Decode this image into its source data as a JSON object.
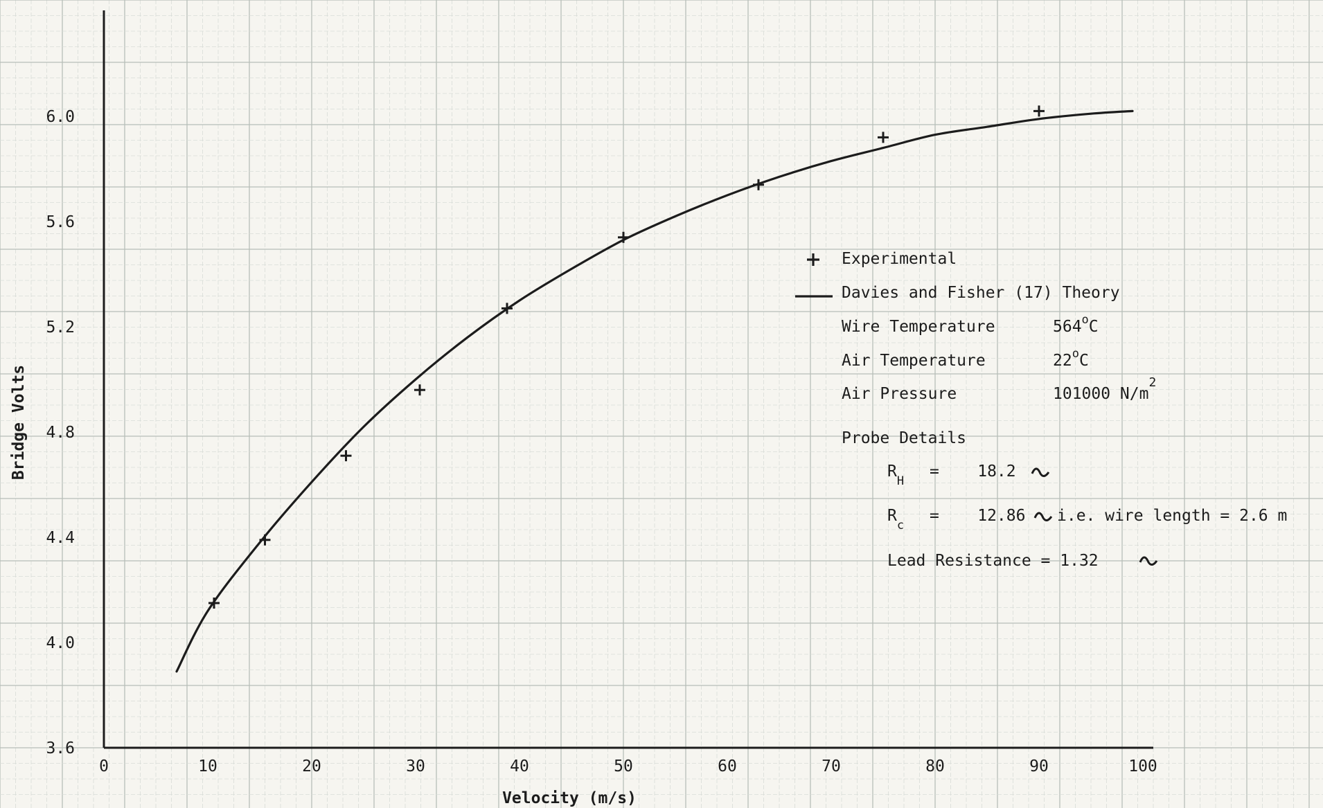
{
  "chart_data": {
    "type": "scatter",
    "xlabel": "Velocity (m/s)",
    "ylabel": "Bridge Volts",
    "xlim": [
      0,
      100
    ],
    "ylim": [
      3.6,
      6.3
    ],
    "x_ticks": [
      "0",
      "10",
      "20",
      "30",
      "40",
      "50",
      "60",
      "70",
      "80",
      "90",
      "100"
    ],
    "y_ticks": [
      "3.6",
      "4.0",
      "4.4",
      "4.8",
      "5.2",
      "5.6",
      "6.0"
    ],
    "grid": true,
    "legend_position": "right",
    "series": [
      {
        "name": "Experimental",
        "kind": "markers",
        "marker": "plus",
        "x": [
          10.6,
          15.5,
          23.3,
          30.4,
          38.8,
          50.0,
          63.0,
          75.0,
          90.0
        ],
        "y": [
          4.15,
          4.39,
          4.71,
          4.96,
          5.27,
          5.54,
          5.74,
          5.92,
          6.02
        ]
      },
      {
        "name": "Davies and Fisher (17) Theory",
        "kind": "line",
        "x": [
          7,
          10,
          15,
          20,
          25,
          30,
          35,
          40,
          45,
          50,
          55,
          60,
          65,
          70,
          75,
          80,
          85,
          90,
          95,
          99
        ],
        "y": [
          3.89,
          4.12,
          4.38,
          4.61,
          4.82,
          5.0,
          5.16,
          5.3,
          5.42,
          5.53,
          5.62,
          5.7,
          5.77,
          5.83,
          5.88,
          5.93,
          5.96,
          5.99,
          6.01,
          6.02
        ]
      }
    ],
    "legend": {
      "experimental": "Experimental",
      "theory": "Davies and Fisher (17) Theory"
    },
    "annotations": {
      "wire_temp_label": "Wire Temperature",
      "wire_temp_value": "564",
      "wire_temp_unit": "C",
      "air_temp_label": "Air Temperature",
      "air_temp_value": "22",
      "air_temp_unit": "C",
      "air_pressure_label": "Air Pressure",
      "air_pressure_value": "101000 N/m",
      "air_pressure_exp": "2",
      "probe_details": "Probe Details",
      "rh_symbol": "R",
      "rh_sub": "H",
      "rh_value": "=    18.2",
      "rc_symbol": "R",
      "rc_sub": "c",
      "rc_value": "=    12.86",
      "rc_note": "i.e. wire length = 2.6 m",
      "lead_resistance": "Lead Resistance = 1.32"
    },
    "colors": {
      "ink": "#1c1c1c",
      "paper": "#f6f5f0",
      "grid": "#c4c9c4"
    }
  }
}
